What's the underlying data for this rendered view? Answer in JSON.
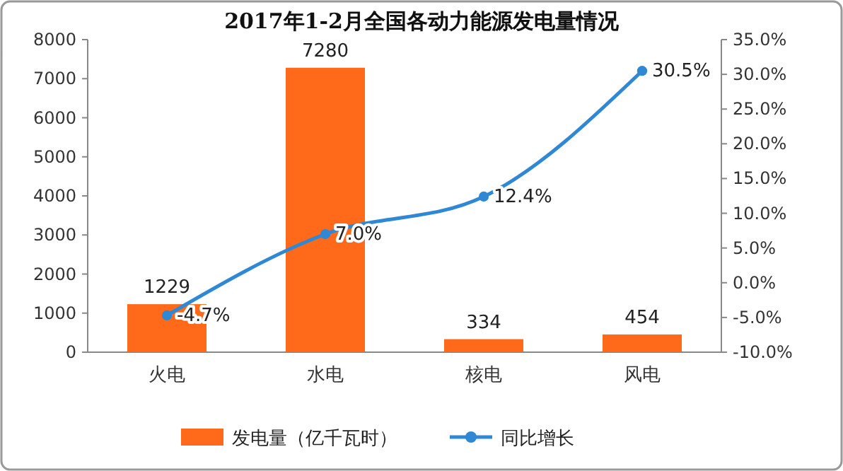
{
  "chart_data": {
    "type": "bar",
    "title": "2017年1-2月全国各动力能源发电量情况",
    "categories": [
      "火电",
      "水电",
      "核电",
      "风电"
    ],
    "series": [
      {
        "name": "发电量（亿千瓦时）",
        "color": "#fe6a1a",
        "values": [
          1229,
          7280,
          334,
          454
        ],
        "value_labels": [
          "1229",
          "7280",
          "334",
          "454"
        ]
      },
      {
        "name": "同比增长",
        "type": "line",
        "axis": "y2",
        "color": "#2e88d6",
        "values": [
          -4.7,
          7.0,
          12.4,
          30.5
        ],
        "value_labels": [
          "-4.7%",
          "7.0%",
          "12.4%",
          "30.5%"
        ]
      }
    ],
    "ylim": [
      0,
      8000
    ],
    "yticks": [
      0,
      1000,
      2000,
      3000,
      4000,
      5000,
      6000,
      7000,
      8000
    ],
    "y2lim": [
      -10,
      35
    ],
    "y2ticks": [
      {
        "value": -10,
        "label": "-10.0%"
      },
      {
        "value": -5,
        "label": "-5.0%"
      },
      {
        "value": 0,
        "label": "0.0%"
      },
      {
        "value": 5,
        "label": "5.0%"
      },
      {
        "value": 10,
        "label": "10.0%"
      },
      {
        "value": 15,
        "label": "15.0%"
      },
      {
        "value": 20,
        "label": "20.0%"
      },
      {
        "value": 25,
        "label": "25.0%"
      },
      {
        "value": 30,
        "label": "30.0%"
      },
      {
        "value": 35,
        "label": "35.0%"
      }
    ],
    "marker": "circle",
    "legend": "bottom",
    "grid": false
  }
}
